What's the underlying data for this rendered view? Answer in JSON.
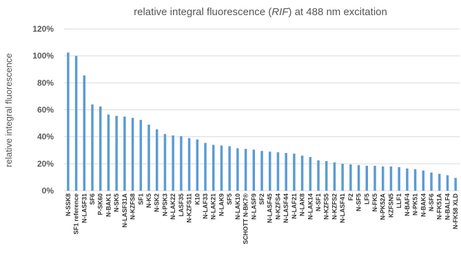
{
  "chart_data": {
    "type": "bar",
    "title": "relative integral fluorescence (RIF) at 488 nm excitation",
    "title_parts": [
      "relative integral fluorescence (",
      "RIF",
      ") at 488 nm excitation"
    ],
    "ylabel": "relative integral fluorescence",
    "xlabel": "",
    "ylim": [
      0,
      120
    ],
    "yticks": [
      "0%",
      "20%",
      "40%",
      "60%",
      "80%",
      "100%",
      "120%"
    ],
    "grid": true,
    "legend": "none",
    "bar_color": "#5b9bd5",
    "categories": [
      "N-SSK8",
      "SF1 reference",
      "N-LASF31",
      "SF6",
      "P-SK60",
      "N-BAK1",
      "N-SK5",
      "N-LASF31A",
      "N-KZFS8",
      "SF1",
      "N-K5",
      "N-SK2",
      "N-PSK3",
      "N-LAK22",
      "LASF35",
      "N-KZFS11",
      "K10",
      "N-LAF33",
      "N-LAK21",
      "N-LAK9",
      "SF5",
      "N-LAK10",
      "SCHOTT N-BK7®",
      "N-LASF9",
      "SF2",
      "N-LASF45",
      "N-KZFS4",
      "N-LASF44",
      "N-LAF21",
      "N-LAK8",
      "N-LAK14",
      "N-SF1",
      "N-KZFS5",
      "N-KZFS2",
      "N-LASF41",
      "F2",
      "N-SF5",
      "LF5",
      "N-FK5",
      "N-PK52A",
      "KZFSN5",
      "LLF1",
      "N-BAF4",
      "N-PK51",
      "N-BAK4",
      "N-SF6",
      "N-FK51A",
      "N-BALF4",
      "N-FK58 XLD"
    ],
    "values": [
      102.5,
      100,
      85.5,
      64,
      62.5,
      56.5,
      55.5,
      55,
      54,
      52.5,
      49,
      45.5,
      42,
      41,
      40.5,
      39,
      38,
      35.5,
      34,
      33.5,
      33,
      31.5,
      31,
      30.5,
      29.5,
      29,
      28.5,
      28,
      27.5,
      26,
      25,
      22.5,
      22,
      21,
      20,
      19.5,
      19,
      18.5,
      18.5,
      18,
      18,
      17.5,
      16.5,
      16,
      15,
      13.5,
      12.5,
      11.5,
      9.5
    ]
  }
}
